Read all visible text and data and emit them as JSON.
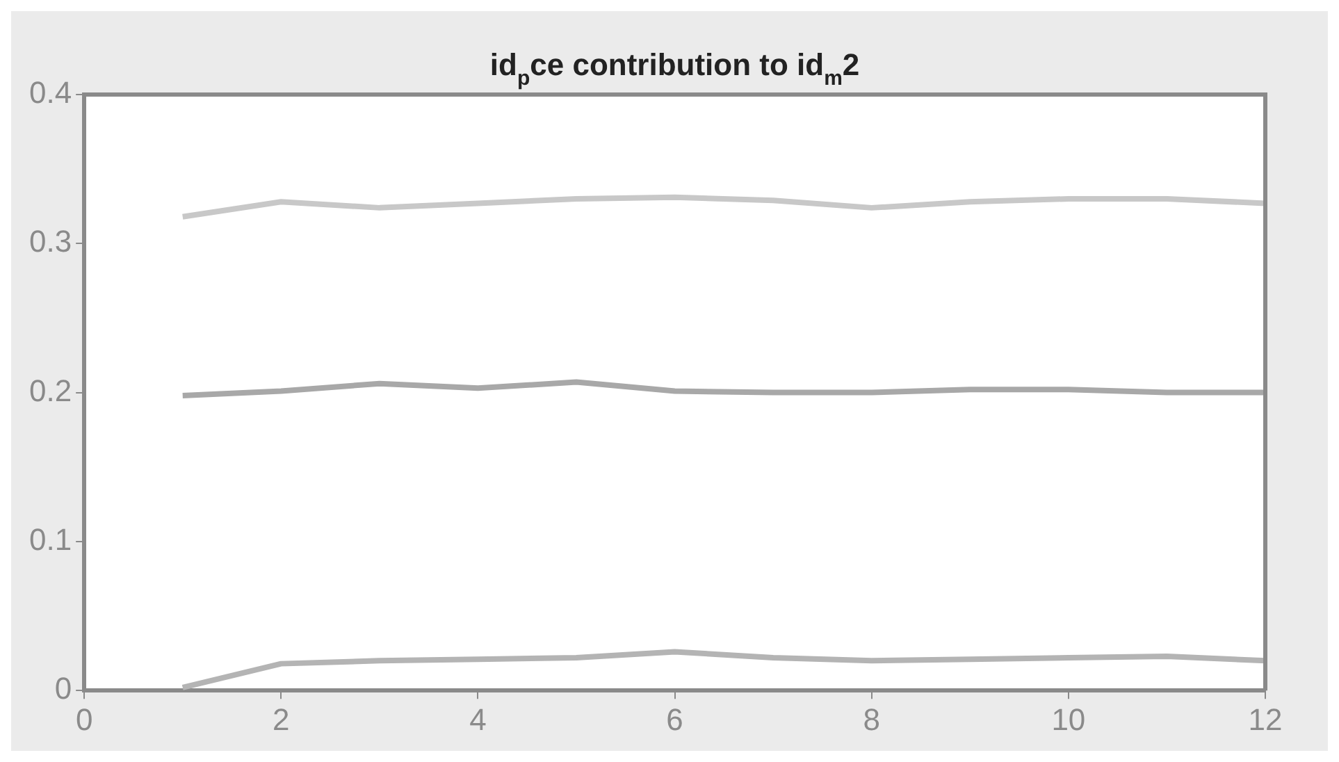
{
  "chart_data": {
    "type": "line",
    "title": "id$_{p}$ce contribution to id$_{m}$2",
    "x": [
      1,
      2,
      3,
      4,
      5,
      6,
      7,
      8,
      9,
      10,
      11,
      12
    ],
    "series": [
      {
        "color": "#c8c8c8",
        "values": [
          0.318,
          0.328,
          0.324,
          0.327,
          0.33,
          0.331,
          0.329,
          0.324,
          0.328,
          0.33,
          0.33,
          0.327
        ]
      },
      {
        "color": "#a8a8a8",
        "values": [
          0.198,
          0.201,
          0.206,
          0.203,
          0.207,
          0.201,
          0.2,
          0.2,
          0.202,
          0.202,
          0.2,
          0.2
        ]
      },
      {
        "color": "#b4b4b4",
        "values": [
          0.002,
          0.018,
          0.02,
          0.021,
          0.022,
          0.026,
          0.022,
          0.02,
          0.021,
          0.022,
          0.023,
          0.02
        ]
      }
    ],
    "xlim": [
      0,
      12
    ],
    "xticks": [
      0,
      2,
      4,
      6,
      8,
      10,
      12
    ],
    "ylim": [
      0,
      0.4
    ],
    "yticks": [
      0,
      0.1,
      0.2,
      0.3,
      0.4
    ],
    "legend": false
  }
}
